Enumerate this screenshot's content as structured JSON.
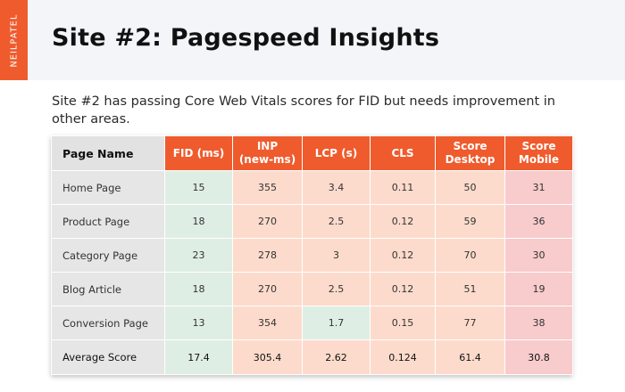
{
  "brand": "NEILPATEL",
  "title": "Site #2: Pagespeed Insights",
  "subtitle": "Site #2 has passing Core Web Vitals scores for FID but needs improvement in other areas.",
  "table": {
    "headers": [
      "Page Name",
      "FID (ms)",
      "INP\n(new-ms)",
      "LCP (s)",
      "CLS",
      "Score\nDesktop",
      "Score\nMobile"
    ],
    "rows": [
      {
        "name": "Home Page",
        "fid": "15",
        "inp": "355",
        "lcp": "3.4",
        "cls": "0.11",
        "desktop": "50",
        "mobile": "31"
      },
      {
        "name": "Product Page",
        "fid": "18",
        "inp": "270",
        "lcp": "2.5",
        "cls": "0.12",
        "desktop": "59",
        "mobile": "36"
      },
      {
        "name": "Category Page",
        "fid": "23",
        "inp": "278",
        "lcp": "3",
        "cls": "0.12",
        "desktop": "70",
        "mobile": "30"
      },
      {
        "name": "Blog Article",
        "fid": "18",
        "inp": "270",
        "lcp": "2.5",
        "cls": "0.12",
        "desktop": "51",
        "mobile": "19"
      },
      {
        "name": "Conversion Page",
        "fid": "13",
        "inp": "354",
        "lcp": "1.7",
        "cls": "0.15",
        "desktop": "77",
        "mobile": "38"
      },
      {
        "name": "Average Score",
        "fid": "17.4",
        "inp": "305.4",
        "lcp": "2.62",
        "cls": "0.124",
        "desktop": "61.4",
        "mobile": "30.8"
      }
    ]
  },
  "colors": {
    "brand_orange": "#ef5b2d",
    "pass_green": "#dfeee4",
    "needs_improvement_peach": "#fddbcc",
    "poor_pink": "#f8cbcc",
    "name_gray": "#e6e6e6"
  }
}
